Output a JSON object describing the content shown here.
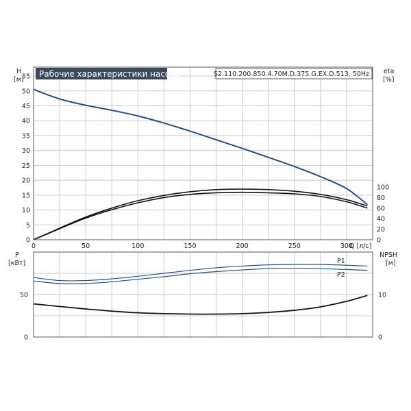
{
  "chart_data": [
    {
      "type": "line",
      "title": "Рабочие характеристики насоса",
      "model": "S2.110.200.850.4.70M.D.375.G.EX.D.513, 50Hz",
      "xlabel": "Q [л/с]",
      "ylabel_left_name": "H",
      "ylabel_left_unit": "[м]",
      "ylabel_right_name": "eta",
      "ylabel_right_unit": "[%]",
      "xlim": [
        0,
        325
      ],
      "ylim_left": [
        0,
        58
      ],
      "ylim_right_eta": [
        0,
        100
      ],
      "x_ticks": [
        0,
        50,
        100,
        150,
        200,
        250,
        300
      ],
      "y_ticks_left": [
        0,
        5,
        10,
        15,
        20,
        25,
        30,
        35,
        40,
        45,
        50,
        55
      ],
      "y_ticks_right": [
        0,
        20,
        40,
        60,
        80,
        100
      ],
      "grid": true,
      "series": [
        {
          "color": "#1f4e8c",
          "x": [
            0,
            25,
            50,
            75,
            100,
            125,
            150,
            175,
            200,
            225,
            250,
            275,
            300,
            320
          ],
          "y": [
            50.5,
            47.3,
            45.2,
            43.5,
            41.6,
            39.2,
            36.5,
            33.6,
            30.7,
            27.7,
            24.6,
            21.2,
            17.2,
            11.8
          ]
        },
        {
          "color": "#111111",
          "axis": "eta",
          "x": [
            0,
            25,
            50,
            75,
            100,
            125,
            150,
            175,
            200,
            225,
            250,
            275,
            300,
            320
          ],
          "y": [
            0,
            22,
            43,
            60,
            74,
            84,
            91,
            95,
            96,
            95,
            92,
            86,
            76,
            64
          ]
        },
        {
          "color": "#111111",
          "axis": "eta",
          "x": [
            0,
            25,
            50,
            75,
            100,
            125,
            150,
            175,
            200,
            225,
            250,
            275,
            300,
            320
          ],
          "y": [
            0,
            21,
            41,
            57,
            70,
            80,
            86,
            89,
            90,
            89,
            87,
            82,
            72,
            60
          ]
        }
      ]
    },
    {
      "type": "line",
      "ylabel_left_name": "P",
      "ylabel_left_unit": "[кВт]",
      "ylabel_right_name": "NPSH",
      "ylabel_right_unit": "[м]",
      "xlim": [
        0,
        325
      ],
      "ylim_left": [
        0,
        100
      ],
      "ylim_right": [
        0,
        20
      ],
      "y_ticks_left": [
        0,
        50
      ],
      "y_ticks_right": [
        0,
        10
      ],
      "grid": true,
      "series": [
        {
          "name": "P1",
          "color": "#1f4e8c",
          "x": [
            0,
            25,
            50,
            75,
            100,
            125,
            150,
            175,
            200,
            225,
            250,
            275,
            300,
            320
          ],
          "y": [
            70,
            66.5,
            66.5,
            68.5,
            71.5,
            75,
            78.5,
            81.5,
            83.5,
            85,
            85.5,
            85.5,
            84.5,
            83.5
          ]
        },
        {
          "name": "P2",
          "color": "#1f4e8c",
          "x": [
            0,
            25,
            50,
            75,
            100,
            125,
            150,
            175,
            200,
            225,
            250,
            275,
            300,
            320
          ],
          "y": [
            66,
            63,
            63,
            65,
            68,
            71,
            74.5,
            77,
            79,
            80.5,
            81,
            80.5,
            79.5,
            78.5
          ]
        },
        {
          "color": "#111111",
          "axis": "npsh",
          "x": [
            0,
            25,
            50,
            75,
            100,
            125,
            150,
            175,
            200,
            225,
            250,
            275,
            300,
            320
          ],
          "y": [
            7.8,
            7.2,
            6.6,
            6.1,
            5.7,
            5.5,
            5.4,
            5.4,
            5.5,
            5.8,
            6.3,
            7.1,
            8.4,
            9.8
          ]
        }
      ]
    }
  ]
}
